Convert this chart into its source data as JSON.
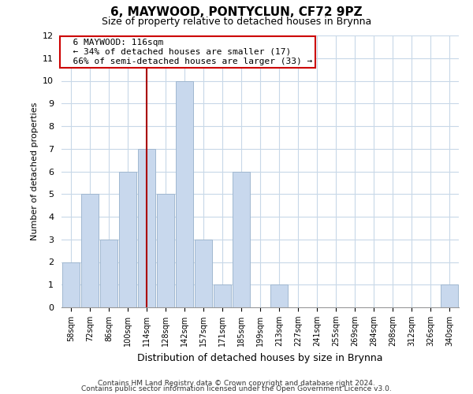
{
  "title": "6, MAYWOOD, PONTYCLUN, CF72 9PZ",
  "subtitle": "Size of property relative to detached houses in Brynna",
  "xlabel": "Distribution of detached houses by size in Brynna",
  "ylabel": "Number of detached properties",
  "bin_labels": [
    "58sqm",
    "72sqm",
    "86sqm",
    "100sqm",
    "114sqm",
    "128sqm",
    "142sqm",
    "157sqm",
    "171sqm",
    "185sqm",
    "199sqm",
    "213sqm",
    "227sqm",
    "241sqm",
    "255sqm",
    "269sqm",
    "284sqm",
    "298sqm",
    "312sqm",
    "326sqm",
    "340sqm"
  ],
  "bar_heights": [
    2,
    5,
    3,
    6,
    7,
    5,
    10,
    3,
    1,
    6,
    0,
    1,
    0,
    0,
    0,
    0,
    0,
    0,
    0,
    0,
    1
  ],
  "bar_color": "#c8d8ed",
  "bar_edge_color": "#a0b8d0",
  "property_line_index": 4,
  "property_label": "6 MAYWOOD: 116sqm",
  "annotation_line1": "← 34% of detached houses are smaller (17)",
  "annotation_line2": "66% of semi-detached houses are larger (33) →",
  "line_color": "#aa0000",
  "ylim": [
    0,
    12
  ],
  "yticks": [
    0,
    1,
    2,
    3,
    4,
    5,
    6,
    7,
    8,
    9,
    10,
    11,
    12
  ],
  "footer1": "Contains HM Land Registry data © Crown copyright and database right 2024.",
  "footer2": "Contains public sector information licensed under the Open Government Licence v3.0.",
  "background_color": "#ffffff",
  "grid_color": "#c8d8e8",
  "annotation_box_color": "#ffffff",
  "annotation_box_edge_color": "#cc0000"
}
